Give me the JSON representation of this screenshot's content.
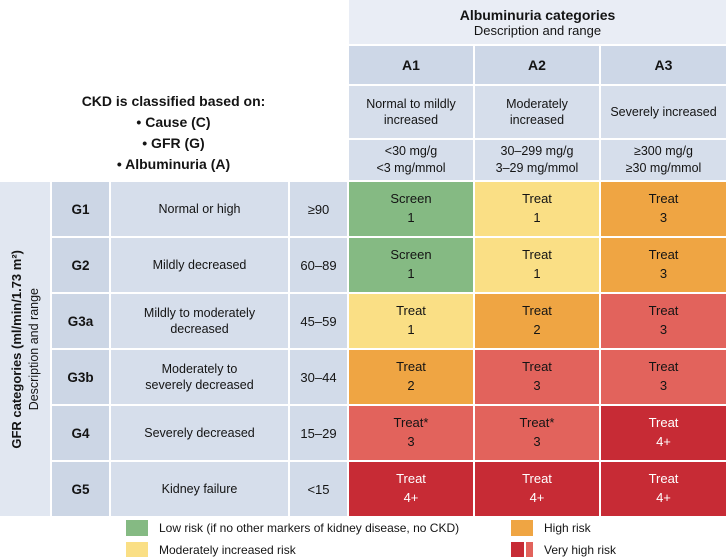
{
  "chart_data": {
    "type": "heatmap",
    "x_axis": {
      "title": "Albuminuria categories",
      "subtitle": "Description and range",
      "categories": [
        {
          "code": "A1",
          "description": "Normal to mildly increased",
          "range1": "<30 mg/g",
          "range2": "<3 mg/mmol"
        },
        {
          "code": "A2",
          "description": "Moderately increased",
          "range1": "30–299 mg/g",
          "range2": "3–29 mg/mmol"
        },
        {
          "code": "A3",
          "description": "Severely increased",
          "range1": "≥300 mg/g",
          "range2": "≥30 mg/mmol"
        }
      ]
    },
    "y_axis": {
      "title": "GFR categories (ml/min/1.73 m²)",
      "subtitle": "Description and range",
      "categories": [
        {
          "code": "G1",
          "description": "Normal or high",
          "range": "≥90"
        },
        {
          "code": "G2",
          "description": "Mildly decreased",
          "range": "60–89"
        },
        {
          "code": "G3a",
          "description": "Mildly to moderately decreased",
          "range": "45–59"
        },
        {
          "code": "G3b",
          "description": "Moderately to severely decreased",
          "range": "30–44"
        },
        {
          "code": "G4",
          "description": "Severely decreased",
          "range": "15–29"
        },
        {
          "code": "G5",
          "description": "Kidney failure",
          "range": "<15"
        }
      ]
    },
    "note": {
      "title": "CKD is classified based on:",
      "bullets": [
        "• Cause (C)",
        "• GFR (G)",
        "• Albuminuria (A)"
      ]
    },
    "cells": [
      [
        {
          "action": "Screen",
          "level": "1",
          "risk": "low"
        },
        {
          "action": "Treat",
          "level": "1",
          "risk": "moderate"
        },
        {
          "action": "Treat",
          "level": "3",
          "risk": "high"
        }
      ],
      [
        {
          "action": "Screen",
          "level": "1",
          "risk": "low"
        },
        {
          "action": "Treat",
          "level": "1",
          "risk": "moderate"
        },
        {
          "action": "Treat",
          "level": "3",
          "risk": "high"
        }
      ],
      [
        {
          "action": "Treat",
          "level": "1",
          "risk": "moderate"
        },
        {
          "action": "Treat",
          "level": "2",
          "risk": "high"
        },
        {
          "action": "Treat",
          "level": "3",
          "risk": "very-high"
        }
      ],
      [
        {
          "action": "Treat",
          "level": "2",
          "risk": "high"
        },
        {
          "action": "Treat",
          "level": "3",
          "risk": "very-high"
        },
        {
          "action": "Treat",
          "level": "3",
          "risk": "very-high"
        }
      ],
      [
        {
          "action": "Treat*",
          "level": "3",
          "risk": "very-high"
        },
        {
          "action": "Treat*",
          "level": "3",
          "risk": "very-high"
        },
        {
          "action": "Treat",
          "level": "4+",
          "risk": "very-high-deep"
        }
      ],
      [
        {
          "action": "Treat",
          "level": "4+",
          "risk": "very-high-deep"
        },
        {
          "action": "Treat",
          "level": "4+",
          "risk": "very-high-deep"
        },
        {
          "action": "Treat",
          "level": "4+",
          "risk": "very-high-deep"
        }
      ]
    ],
    "legend": [
      {
        "risk": "low",
        "label": "Low risk (if no other markers of kidney disease, no CKD)"
      },
      {
        "risk": "moderate",
        "label": "Moderately increased risk"
      },
      {
        "risk": "high",
        "label": "High risk"
      },
      {
        "risk": "very-high",
        "label": "Very high risk",
        "swatch": [
          "very-high-deep",
          "very-high"
        ]
      }
    ],
    "colors": {
      "low": "#85ba83",
      "moderately_increased": "#fadf85",
      "high": "#efa543",
      "very_high": "#e2635c",
      "very_high_deep": "#c72b35",
      "header_band": "#e9edf5",
      "header_cell": "#cdd7e7",
      "subheader_cell": "#d6deeb",
      "axis_strip": "#e1e7f1"
    }
  }
}
